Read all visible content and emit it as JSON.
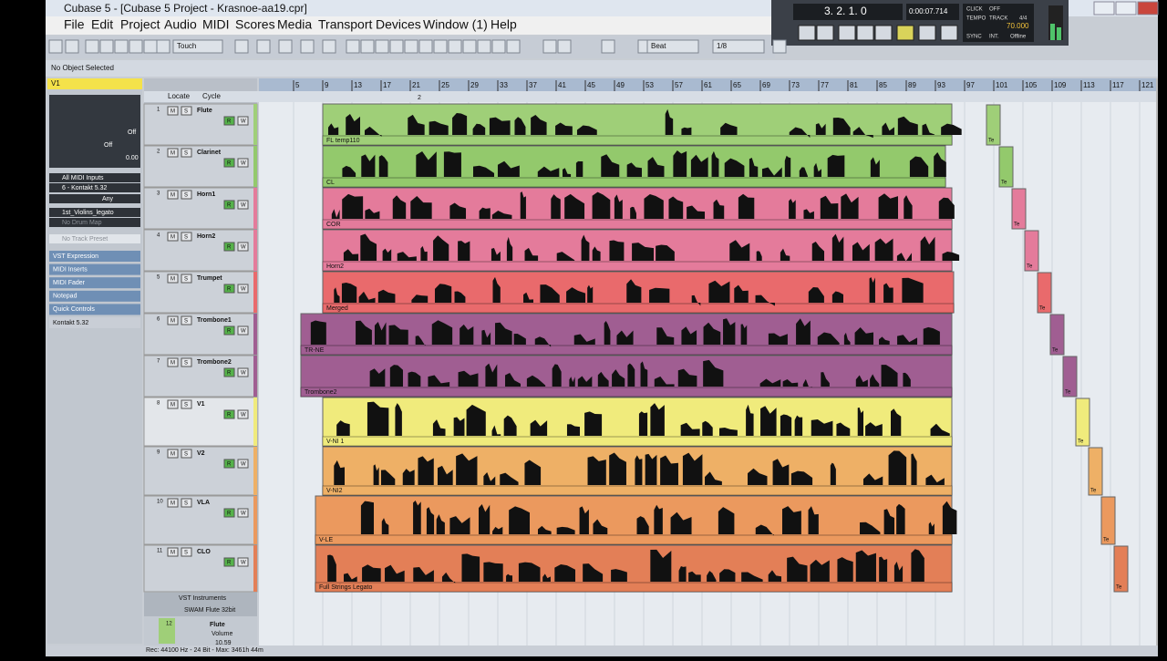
{
  "window": {
    "title": "Cubase 5 - [Cubase 5 Project - Krasnoe-aa19.cpr]",
    "menu": [
      "File",
      "Edit",
      "Project",
      "Audio",
      "MIDI",
      "Scores",
      "Media",
      "Transport",
      "Devices",
      "Window (1)",
      "Help"
    ]
  },
  "toolbar": {
    "automation": "Touch",
    "grid_type": "Beat",
    "quantize": "1/8"
  },
  "transport": {
    "position": "3. 2. 1.   0",
    "time": "0:00:07.714",
    "click": "CLICK",
    "click_state": "OFF",
    "tempo": "TEMPO",
    "track": "TRACK",
    "signature": "4/4",
    "tempo_value": "70.000",
    "sync": "SYNC",
    "sync_mode": "INT.",
    "sync_state": "Offline"
  },
  "info_line": "No Object Selected",
  "inspector": {
    "track": "V1",
    "off1": "Off",
    "off2": "Off",
    "value": "0.00",
    "input": "All MIDI Inputs",
    "output": "6 - Kontakt 5.32",
    "channel": "Any",
    "program": "1st_Violins_legato",
    "drum_map": "No Drum Map",
    "preset": "No Track Preset",
    "sections": [
      "VST Expression",
      "MIDI Inserts",
      "MIDI Fader",
      "Notepad",
      "Quick Controls",
      "Kontakt 5.32"
    ]
  },
  "ruler": {
    "locate": "Locate",
    "cycle": "Cycle",
    "marker": "2",
    "bars": [
      "5",
      "9",
      "13",
      "17",
      "21",
      "25",
      "29",
      "33",
      "37",
      "41",
      "45",
      "49",
      "53",
      "57",
      "61",
      "65",
      "69",
      "73",
      "77",
      "81",
      "85",
      "89",
      "93",
      "97",
      "101",
      "105",
      "109",
      "113",
      "117",
      "121"
    ]
  },
  "track_buttons": [
    "M",
    "S",
    "R",
    "W"
  ],
  "tail_label": "Te",
  "tracks": [
    {
      "number": "1",
      "name": "Flute",
      "part": "FL temp110",
      "color": "#9fcf78"
    },
    {
      "number": "2",
      "name": "Clarinet",
      "part": "CL",
      "color": "#93c96c"
    },
    {
      "number": "3",
      "name": "Horn1",
      "part": "COR",
      "color": "#e47b9b"
    },
    {
      "number": "4",
      "name": "Horn2",
      "part": "Horn2",
      "color": "#e47b9b"
    },
    {
      "number": "5",
      "name": "Trumpet",
      "part": "Merged",
      "color": "#e96a6c"
    },
    {
      "number": "6",
      "name": "Trombone1",
      "part": "TR-NE",
      "color": "#a05e92"
    },
    {
      "number": "7",
      "name": "Trombone2",
      "part": "Trombone2",
      "color": "#a05e92"
    },
    {
      "number": "8",
      "name": "V1",
      "part": "V-NI 1",
      "color": "#f0eb7c"
    },
    {
      "number": "9",
      "name": "V2",
      "part": "V-NI2",
      "color": "#eeb066"
    },
    {
      "number": "10",
      "name": "VLA",
      "part": "V-LE",
      "color": "#eb995e"
    },
    {
      "number": "11",
      "name": "CLO",
      "part": "Full Strings Legato",
      "color": "#e37f57"
    }
  ],
  "folder": {
    "name": "VST Instruments",
    "instrument": "SWAM Flute 32bit",
    "number": "12",
    "channel": "Flute",
    "param": "Volume",
    "param_value": "10.59"
  },
  "status": "Rec: 44100 Hz - 24 Bit - Max: 3461h 44m"
}
